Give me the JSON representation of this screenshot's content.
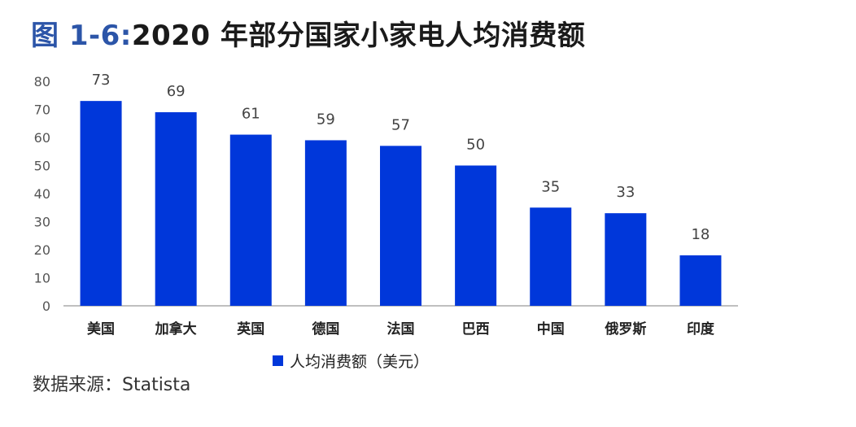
{
  "title_prefix": "图 1-6:",
  "title_text": "2020 年部分国家小家电人均消费额",
  "source": "数据来源：Statista",
  "colors": {
    "bar": "#0037DA",
    "title_prefix": "#2c55a8",
    "axis": "#aaaaaa"
  },
  "chart_data": {
    "type": "bar",
    "title": "2020 年部分国家小家电人均消费额",
    "categories": [
      "美国",
      "加拿大",
      "英国",
      "德国",
      "法国",
      "巴西",
      "中国",
      "俄罗斯",
      "印度"
    ],
    "series": [
      {
        "name": "人均消费额（美元）",
        "values": [
          73,
          69,
          61,
          59,
          57,
          50,
          35,
          33,
          18
        ]
      }
    ],
    "ylim": [
      0,
      80
    ],
    "yticks": [
      0,
      10,
      20,
      30,
      40,
      50,
      60,
      70,
      80
    ],
    "data_labels": true,
    "grid": false,
    "legend": "bottom"
  }
}
